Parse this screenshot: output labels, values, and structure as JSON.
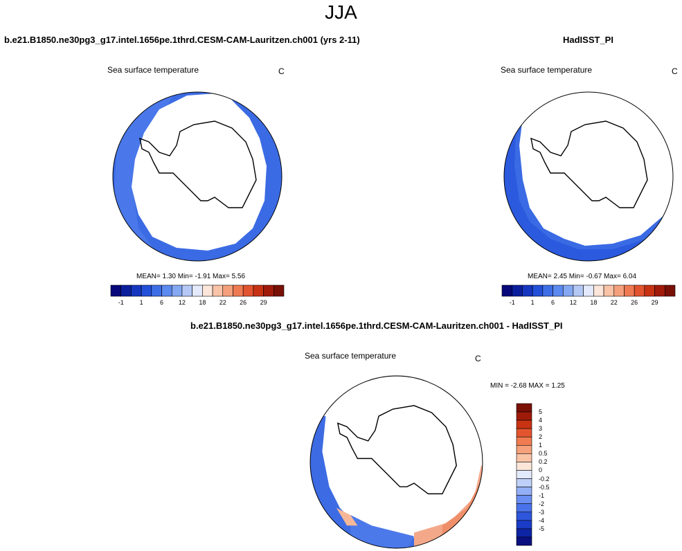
{
  "season": "JJA",
  "panels": [
    {
      "title": "b.e21.B1850.ne30pg3_g17.intel.1656pe.1thrd.CESM-CAM-Lauritzen.ch001 (yrs 2-11)",
      "variable": "Sea surface temperature",
      "units": "C",
      "stats": {
        "mean": "1.30",
        "min": "-1.91",
        "max": "5.56"
      },
      "stats_text": "MEAN=  1.30  Min=  -1.91  Max=   5.56"
    },
    {
      "title": "HadISST_PI",
      "variable": "Sea surface temperature",
      "units": "C",
      "stats": {
        "mean": "2.45",
        "min": "-0.67",
        "max": "6.04"
      },
      "stats_text": "MEAN=  2.45  Min=  -0.67  Max=   6.04"
    },
    {
      "title": "b.e21.B1850.ne30pg3_g17.intel.1656pe.1thrd.CESM-CAM-Lauritzen.ch001 - HadISST_PI",
      "variable": "Sea surface temperature",
      "units": "C",
      "stats": {
        "min": "-2.68",
        "max": "1.25"
      },
      "stats_text": "MIN =  -2.68 MAX =   1.25"
    }
  ],
  "abs_colorbar": {
    "colors": [
      "#08087a",
      "#0b1f9c",
      "#1537c0",
      "#2250d8",
      "#3d6ee6",
      "#5b8af0",
      "#85a8f2",
      "#b4c8f6",
      "#e3eafb",
      "#fbe6d9",
      "#f8c3a7",
      "#f4a07c",
      "#ef7a52",
      "#e2542f",
      "#c73213",
      "#a01a0a",
      "#781006"
    ],
    "tick_labels": [
      "-1",
      "1",
      "6",
      "12",
      "18",
      "22",
      "26",
      "29"
    ]
  },
  "diff_colorbar": {
    "colors": [
      "#0a0f80",
      "#0d24a4",
      "#1a3cc6",
      "#2e56dd",
      "#4a72ea",
      "#6a8ef2",
      "#93aff5",
      "#bed0f8",
      "#e3eafb",
      "#fbe6d9",
      "#f9c3a5",
      "#f5a17c",
      "#f07c51",
      "#e3552e",
      "#c83313",
      "#9e1b0a",
      "#7a1006"
    ],
    "labels": [
      "5",
      "4",
      "3",
      "2",
      "1",
      "0.5",
      "0.2",
      "0",
      "-0.2",
      "-0.5",
      "-1",
      "-2",
      "-3",
      "-4",
      "-5"
    ]
  }
}
